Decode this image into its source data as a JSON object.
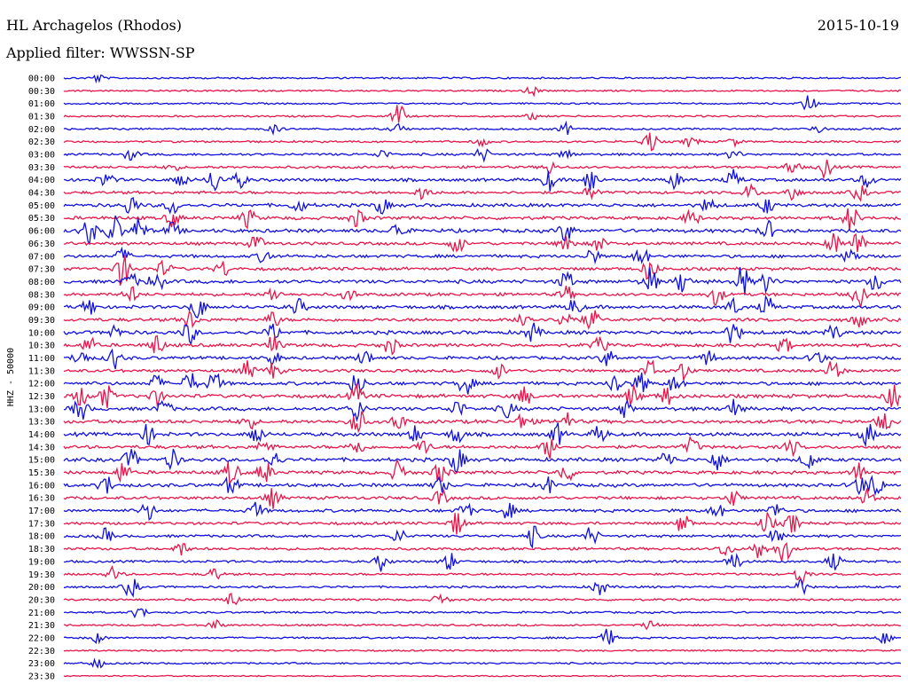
{
  "header": {
    "station": "HL Archagelos (Rhodos)",
    "date": "2015-10-19",
    "filter": "Applied filter: WWSSN-SP"
  },
  "chart_data": {
    "type": "line",
    "title": "HL Archagelos (Rhodos)",
    "subtitle": "Applied filter: WWSSN-SP",
    "date": "2015-10-19",
    "ylabel": "HHZ - 50000",
    "xlabel": "",
    "trace_minutes": 30,
    "colors": {
      "even": "#1010e0",
      "odd": "#e8154a"
    },
    "grid": false,
    "rows": [
      {
        "label": "00:00",
        "level": 0.25,
        "bursts": [
          [
            0.04,
            0.5
          ]
        ]
      },
      {
        "label": "00:30",
        "level": 0.2,
        "bursts": [
          [
            0.56,
            0.6
          ]
        ]
      },
      {
        "label": "01:00",
        "level": 0.2,
        "bursts": [
          [
            0.89,
            1.2
          ]
        ]
      },
      {
        "label": "01:30",
        "level": 0.25,
        "bursts": [
          [
            0.4,
            1.6
          ],
          [
            0.56,
            0.4
          ]
        ]
      },
      {
        "label": "02:00",
        "level": 0.35,
        "bursts": [
          [
            0.25,
            0.5
          ],
          [
            0.4,
            0.6
          ],
          [
            0.6,
            0.7
          ],
          [
            0.9,
            0.6
          ]
        ]
      },
      {
        "label": "02:30",
        "level": 0.35,
        "bursts": [
          [
            0.5,
            0.5
          ],
          [
            0.7,
            1.4
          ],
          [
            0.75,
            0.8
          ],
          [
            0.8,
            0.5
          ]
        ]
      },
      {
        "label": "03:00",
        "level": 0.5,
        "bursts": [
          [
            0.08,
            0.7
          ],
          [
            0.38,
            0.6
          ],
          [
            0.5,
            0.9
          ],
          [
            0.6,
            0.6
          ],
          [
            0.8,
            0.6
          ]
        ]
      },
      {
        "label": "03:30",
        "level": 0.55,
        "bursts": [
          [
            0.13,
            0.5
          ],
          [
            0.58,
            0.8
          ],
          [
            0.87,
            1.0
          ],
          [
            0.91,
            1.3
          ]
        ]
      },
      {
        "label": "04:00",
        "level": 0.8,
        "bursts": [
          [
            0.05,
            1.0
          ],
          [
            0.14,
            1.0
          ],
          [
            0.18,
            1.5
          ],
          [
            0.21,
            0.9
          ],
          [
            0.58,
            1.3
          ],
          [
            0.63,
            1.6
          ],
          [
            0.73,
            1.0
          ],
          [
            0.8,
            1.2
          ],
          [
            0.96,
            1.0
          ]
        ]
      },
      {
        "label": "04:30",
        "level": 0.7,
        "bursts": [
          [
            0.43,
            1.0
          ],
          [
            0.63,
            0.9
          ],
          [
            0.82,
            1.0
          ],
          [
            0.87,
            1.1
          ],
          [
            0.95,
            1.0
          ]
        ]
      },
      {
        "label": "05:00",
        "level": 0.9,
        "bursts": [
          [
            0.08,
            1.3
          ],
          [
            0.13,
            1.1
          ],
          [
            0.28,
            0.9
          ],
          [
            0.38,
            1.0
          ],
          [
            0.77,
            0.9
          ],
          [
            0.84,
            1.0
          ]
        ]
      },
      {
        "label": "05:30",
        "level": 0.9,
        "bursts": [
          [
            0.13,
            1.0
          ],
          [
            0.22,
            1.2
          ],
          [
            0.35,
            1.1
          ],
          [
            0.75,
            1.1
          ],
          [
            0.94,
            1.8
          ]
        ]
      },
      {
        "label": "06:00",
        "level": 1.0,
        "bursts": [
          [
            0.03,
            1.8
          ],
          [
            0.06,
            2.0
          ],
          [
            0.09,
            1.6
          ],
          [
            0.13,
            1.0
          ],
          [
            0.4,
            1.2
          ],
          [
            0.6,
            1.3
          ],
          [
            0.84,
            1.2
          ]
        ]
      },
      {
        "label": "06:30",
        "level": 0.8,
        "bursts": [
          [
            0.23,
            1.0
          ],
          [
            0.47,
            1.2
          ],
          [
            0.6,
            1.5
          ],
          [
            0.64,
            1.0
          ],
          [
            0.92,
            1.4
          ],
          [
            0.95,
            1.6
          ]
        ]
      },
      {
        "label": "07:00",
        "level": 0.8,
        "bursts": [
          [
            0.07,
            0.9
          ],
          [
            0.24,
            0.9
          ],
          [
            0.63,
            1.0
          ],
          [
            0.69,
            1.3
          ],
          [
            0.94,
            1.1
          ]
        ]
      },
      {
        "label": "07:30",
        "level": 0.8,
        "bursts": [
          [
            0.07,
            2.2
          ],
          [
            0.12,
            1.0
          ],
          [
            0.19,
            1.0
          ],
          [
            0.7,
            1.6
          ]
        ]
      },
      {
        "label": "08:00",
        "level": 1.0,
        "bursts": [
          [
            0.08,
            1.0
          ],
          [
            0.11,
            1.5
          ],
          [
            0.6,
            1.3
          ],
          [
            0.7,
            1.8
          ],
          [
            0.74,
            1.6
          ],
          [
            0.81,
            2.0
          ],
          [
            0.84,
            1.2
          ],
          [
            0.97,
            1.2
          ]
        ]
      },
      {
        "label": "08:30",
        "level": 0.8,
        "bursts": [
          [
            0.08,
            1.0
          ],
          [
            0.25,
            0.9
          ],
          [
            0.34,
            0.8
          ],
          [
            0.6,
            1.0
          ],
          [
            0.78,
            1.3
          ],
          [
            0.95,
            1.6
          ]
        ]
      },
      {
        "label": "09:00",
        "level": 0.9,
        "bursts": [
          [
            0.03,
            1.1
          ],
          [
            0.16,
            1.6
          ],
          [
            0.28,
            1.0
          ],
          [
            0.61,
            1.1
          ],
          [
            0.8,
            1.0
          ],
          [
            0.84,
            1.3
          ]
        ]
      },
      {
        "label": "09:30",
        "level": 0.9,
        "bursts": [
          [
            0.15,
            1.2
          ],
          [
            0.25,
            1.0
          ],
          [
            0.55,
            1.4
          ],
          [
            0.6,
            1.6
          ],
          [
            0.63,
            1.4
          ],
          [
            0.95,
            0.9
          ]
        ]
      },
      {
        "label": "10:00",
        "level": 1.0,
        "bursts": [
          [
            0.06,
            0.9
          ],
          [
            0.15,
            1.4
          ],
          [
            0.25,
            1.0
          ],
          [
            0.56,
            1.2
          ],
          [
            0.8,
            1.5
          ],
          [
            0.92,
            1.0
          ]
        ]
      },
      {
        "label": "10:30",
        "level": 0.9,
        "bursts": [
          [
            0.03,
            1.0
          ],
          [
            0.11,
            1.4
          ],
          [
            0.25,
            1.2
          ],
          [
            0.39,
            1.2
          ],
          [
            0.64,
            1.0
          ],
          [
            0.86,
            1.1
          ]
        ]
      },
      {
        "label": "11:00",
        "level": 0.8,
        "bursts": [
          [
            0.02,
            1.2
          ],
          [
            0.06,
            1.3
          ],
          [
            0.25,
            0.9
          ],
          [
            0.36,
            1.0
          ],
          [
            0.65,
            1.1
          ],
          [
            0.77,
            1.0
          ],
          [
            0.9,
            1.0
          ]
        ]
      },
      {
        "label": "11:30",
        "level": 0.8,
        "bursts": [
          [
            0.22,
            1.2
          ],
          [
            0.25,
            1.0
          ],
          [
            0.52,
            0.9
          ],
          [
            0.7,
            1.4
          ],
          [
            0.74,
            1.2
          ],
          [
            0.92,
            1.5
          ]
        ]
      },
      {
        "label": "12:00",
        "level": 0.9,
        "bursts": [
          [
            0.11,
            1.0
          ],
          [
            0.15,
            1.5
          ],
          [
            0.18,
            1.4
          ],
          [
            0.35,
            1.5
          ],
          [
            0.48,
            1.6
          ],
          [
            0.66,
            1.6
          ],
          [
            0.69,
            1.3
          ],
          [
            0.73,
            1.1
          ]
        ]
      },
      {
        "label": "12:30",
        "level": 1.0,
        "bursts": [
          [
            0.02,
            1.2
          ],
          [
            0.05,
            1.5
          ],
          [
            0.11,
            1.0
          ],
          [
            0.35,
            1.2
          ],
          [
            0.55,
            1.2
          ],
          [
            0.68,
            1.4
          ],
          [
            0.72,
            1.2
          ],
          [
            0.99,
            1.6
          ]
        ]
      },
      {
        "label": "13:00",
        "level": 1.0,
        "bursts": [
          [
            0.02,
            1.5
          ],
          [
            0.12,
            1.1
          ],
          [
            0.35,
            1.5
          ],
          [
            0.47,
            1.2
          ],
          [
            0.53,
            1.1
          ],
          [
            0.67,
            1.0
          ],
          [
            0.8,
            1.2
          ]
        ]
      },
      {
        "label": "13:30",
        "level": 1.0,
        "bursts": [
          [
            0.22,
            1.0
          ],
          [
            0.35,
            2.0
          ],
          [
            0.4,
            1.1
          ],
          [
            0.55,
            1.3
          ],
          [
            0.6,
            1.1
          ],
          [
            0.98,
            1.2
          ]
        ]
      },
      {
        "label": "14:00",
        "level": 1.0,
        "bursts": [
          [
            0.1,
            1.2
          ],
          [
            0.23,
            1.3
          ],
          [
            0.42,
            1.0
          ],
          [
            0.47,
            1.2
          ],
          [
            0.59,
            1.3
          ],
          [
            0.64,
            1.1
          ],
          [
            0.96,
            1.4
          ]
        ]
      },
      {
        "label": "14:30",
        "level": 0.9,
        "bursts": [
          [
            0.24,
            1.0
          ],
          [
            0.35,
            1.2
          ],
          [
            0.43,
            1.0
          ],
          [
            0.58,
            1.4
          ],
          [
            0.75,
            1.1
          ],
          [
            0.87,
            1.0
          ]
        ]
      },
      {
        "label": "15:00",
        "level": 1.0,
        "bursts": [
          [
            0.08,
            1.3
          ],
          [
            0.13,
            1.2
          ],
          [
            0.25,
            1.1
          ],
          [
            0.47,
            1.6
          ],
          [
            0.72,
            1.2
          ],
          [
            0.78,
            1.3
          ],
          [
            0.89,
            1.2
          ]
        ]
      },
      {
        "label": "15:30",
        "level": 0.9,
        "bursts": [
          [
            0.07,
            1.4
          ],
          [
            0.2,
            1.6
          ],
          [
            0.24,
            1.5
          ],
          [
            0.4,
            1.5
          ],
          [
            0.45,
            1.4
          ],
          [
            0.6,
            1.3
          ],
          [
            0.95,
            1.2
          ]
        ]
      },
      {
        "label": "16:00",
        "level": 0.9,
        "bursts": [
          [
            0.05,
            1.3
          ],
          [
            0.2,
            1.2
          ],
          [
            0.45,
            1.0
          ],
          [
            0.58,
            1.0
          ],
          [
            0.95,
            1.3
          ],
          [
            0.97,
            1.6
          ]
        ]
      },
      {
        "label": "16:30",
        "level": 0.8,
        "bursts": [
          [
            0.25,
            1.2
          ],
          [
            0.45,
            1.0
          ],
          [
            0.8,
            1.0
          ],
          [
            0.96,
            1.1
          ]
        ]
      },
      {
        "label": "17:00",
        "level": 0.8,
        "bursts": [
          [
            0.1,
            1.2
          ],
          [
            0.23,
            1.0
          ],
          [
            0.48,
            1.0
          ],
          [
            0.53,
            1.1
          ],
          [
            0.78,
            1.0
          ],
          [
            0.85,
            1.0
          ]
        ]
      },
      {
        "label": "17:30",
        "level": 0.7,
        "bursts": [
          [
            0.47,
            1.5
          ],
          [
            0.74,
            1.4
          ],
          [
            0.84,
            1.3
          ],
          [
            0.87,
            1.2
          ]
        ]
      },
      {
        "label": "18:00",
        "level": 0.6,
        "bursts": [
          [
            0.05,
            0.9
          ],
          [
            0.4,
            0.9
          ],
          [
            0.56,
            1.3
          ],
          [
            0.63,
            1.2
          ],
          [
            0.85,
            1.0
          ]
        ]
      },
      {
        "label": "18:30",
        "level": 0.6,
        "bursts": [
          [
            0.14,
            0.9
          ],
          [
            0.79,
            1.0
          ],
          [
            0.83,
            1.3
          ],
          [
            0.86,
            1.8
          ]
        ]
      },
      {
        "label": "19:00",
        "level": 0.5,
        "bursts": [
          [
            0.38,
            1.2
          ],
          [
            0.46,
            1.2
          ],
          [
            0.8,
            1.4
          ],
          [
            0.92,
            1.1
          ]
        ]
      },
      {
        "label": "19:30",
        "level": 0.45,
        "bursts": [
          [
            0.06,
            1.0
          ],
          [
            0.18,
            0.8
          ],
          [
            0.88,
            1.3
          ]
        ]
      },
      {
        "label": "20:00",
        "level": 0.4,
        "bursts": [
          [
            0.08,
            1.3
          ],
          [
            0.64,
            1.1
          ],
          [
            0.88,
            1.0
          ]
        ]
      },
      {
        "label": "20:30",
        "level": 0.4,
        "bursts": [
          [
            0.2,
            0.9
          ],
          [
            0.45,
            0.8
          ]
        ]
      },
      {
        "label": "21:00",
        "level": 0.3,
        "bursts": [
          [
            0.09,
            0.8
          ]
        ]
      },
      {
        "label": "21:30",
        "level": 0.3,
        "bursts": [
          [
            0.18,
            0.7
          ],
          [
            0.7,
            0.6
          ]
        ]
      },
      {
        "label": "22:00",
        "level": 0.3,
        "bursts": [
          [
            0.04,
            0.6
          ],
          [
            0.65,
            1.1
          ],
          [
            0.98,
            0.7
          ]
        ]
      },
      {
        "label": "22:30",
        "level": 0.2,
        "bursts": []
      },
      {
        "label": "23:00",
        "level": 0.25,
        "bursts": [
          [
            0.04,
            0.6
          ]
        ]
      },
      {
        "label": "23:30",
        "level": 0.05,
        "bursts": []
      }
    ]
  }
}
